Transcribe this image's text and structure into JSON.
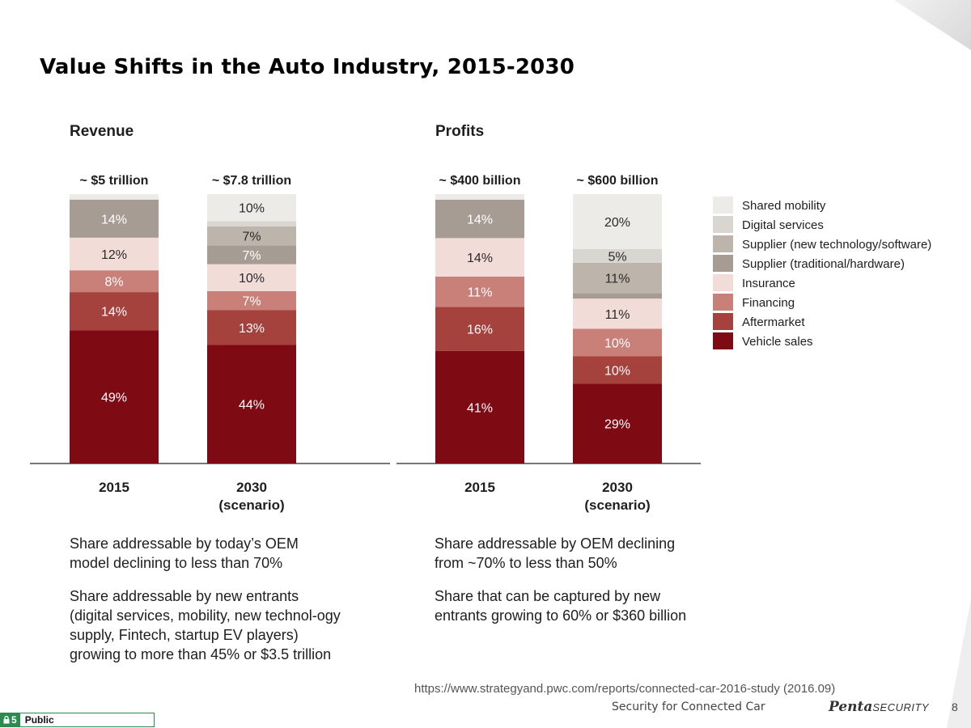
{
  "slide": {
    "title": "Value Shifts in the Auto Industry, 2015-2030",
    "source_url": "https://www.strategyand.pwc.com/reports/connected-car-2016-study (2016.09)",
    "footer_center": "Security for Connected Car",
    "logo_bold": "Penta",
    "logo_light": "SECURITY",
    "page_number": "8",
    "classification_level": "5",
    "classification_label": "Public"
  },
  "colors": {
    "Shared mobility": "#ecebe7",
    "Digital services": "#d9d6d1",
    "Supplier (new technology/software)": "#bdb4ac",
    "Supplier (traditional/hardware)": "#a79c94",
    "Insurance": "#f1dcd8",
    "Financing": "#c98079",
    "Aftermarket": "#a5423e",
    "Vehicle sales": "#7e0a14"
  },
  "chart_data": [
    {
      "type": "bar",
      "stacked": true,
      "section_title": "Revenue",
      "categories": [
        "2015",
        "2030\n(scenario)"
      ],
      "totals": [
        "~ $5 trillion",
        "~ $7.8 trillion"
      ],
      "series": [
        {
          "name": "Vehicle sales",
          "values": [
            49,
            44
          ]
        },
        {
          "name": "Aftermarket",
          "values": [
            14,
            13
          ]
        },
        {
          "name": "Financing",
          "values": [
            8,
            7
          ]
        },
        {
          "name": "Insurance",
          "values": [
            12,
            10
          ]
        },
        {
          "name": "Supplier (traditional/hardware)",
          "values": [
            14,
            7
          ]
        },
        {
          "name": "Supplier (new technology/software)",
          "values": [
            0,
            7
          ]
        },
        {
          "name": "Digital services",
          "values": [
            0,
            2
          ]
        },
        {
          "name": "Shared mobility",
          "values": [
            2,
            10
          ]
        }
      ],
      "labels": [
        [
          "49%",
          "14%",
          "8%",
          "12%",
          "14%",
          "",
          "",
          ""
        ],
        [
          "44%",
          "13%",
          "7%",
          "10%",
          "7%",
          "7%",
          "",
          "10%"
        ]
      ],
      "ylim": [
        0,
        100
      ]
    },
    {
      "type": "bar",
      "stacked": true,
      "section_title": "Profits",
      "categories": [
        "2015",
        "2030\n(scenario)"
      ],
      "totals": [
        "~ $400 billion",
        "~ $600 billion"
      ],
      "series": [
        {
          "name": "Vehicle sales",
          "values": [
            41,
            29
          ]
        },
        {
          "name": "Aftermarket",
          "values": [
            16,
            10
          ]
        },
        {
          "name": "Financing",
          "values": [
            11,
            10
          ]
        },
        {
          "name": "Insurance",
          "values": [
            14,
            11
          ]
        },
        {
          "name": "Supplier (traditional/hardware)",
          "values": [
            14,
            2
          ]
        },
        {
          "name": "Supplier (new technology/software)",
          "values": [
            0,
            11
          ]
        },
        {
          "name": "Digital services",
          "values": [
            0,
            5
          ]
        },
        {
          "name": "Shared mobility",
          "values": [
            2,
            20
          ]
        }
      ],
      "labels": [
        [
          "41%",
          "16%",
          "11%",
          "14%",
          "14%",
          "",
          "",
          ""
        ],
        [
          "29%",
          "10%",
          "10%",
          "11%",
          "",
          "11%",
          "5%",
          "20%"
        ]
      ],
      "ylim": [
        0,
        100
      ]
    }
  ],
  "legend": {
    "placement": "right",
    "items": [
      "Shared mobility",
      "Digital services",
      "Supplier (new technology/software)",
      "Supplier (traditional/hardware)",
      "Insurance",
      "Financing",
      "Aftermarket",
      "Vehicle sales"
    ]
  },
  "notes": {
    "revenue": [
      "Share addressable by today’s OEM model declining to less than 70%",
      "Share addressable by new entrants (digital services, mobility, new technol-ogy supply, Fintech, startup EV players) growing to more than 45% or $3.5 trillion"
    ],
    "profits": [
      "Share addressable by OEM declining from ~70% to less than 50%",
      "Share that can be captured by new entrants growing to 60% or $360 billion"
    ]
  }
}
